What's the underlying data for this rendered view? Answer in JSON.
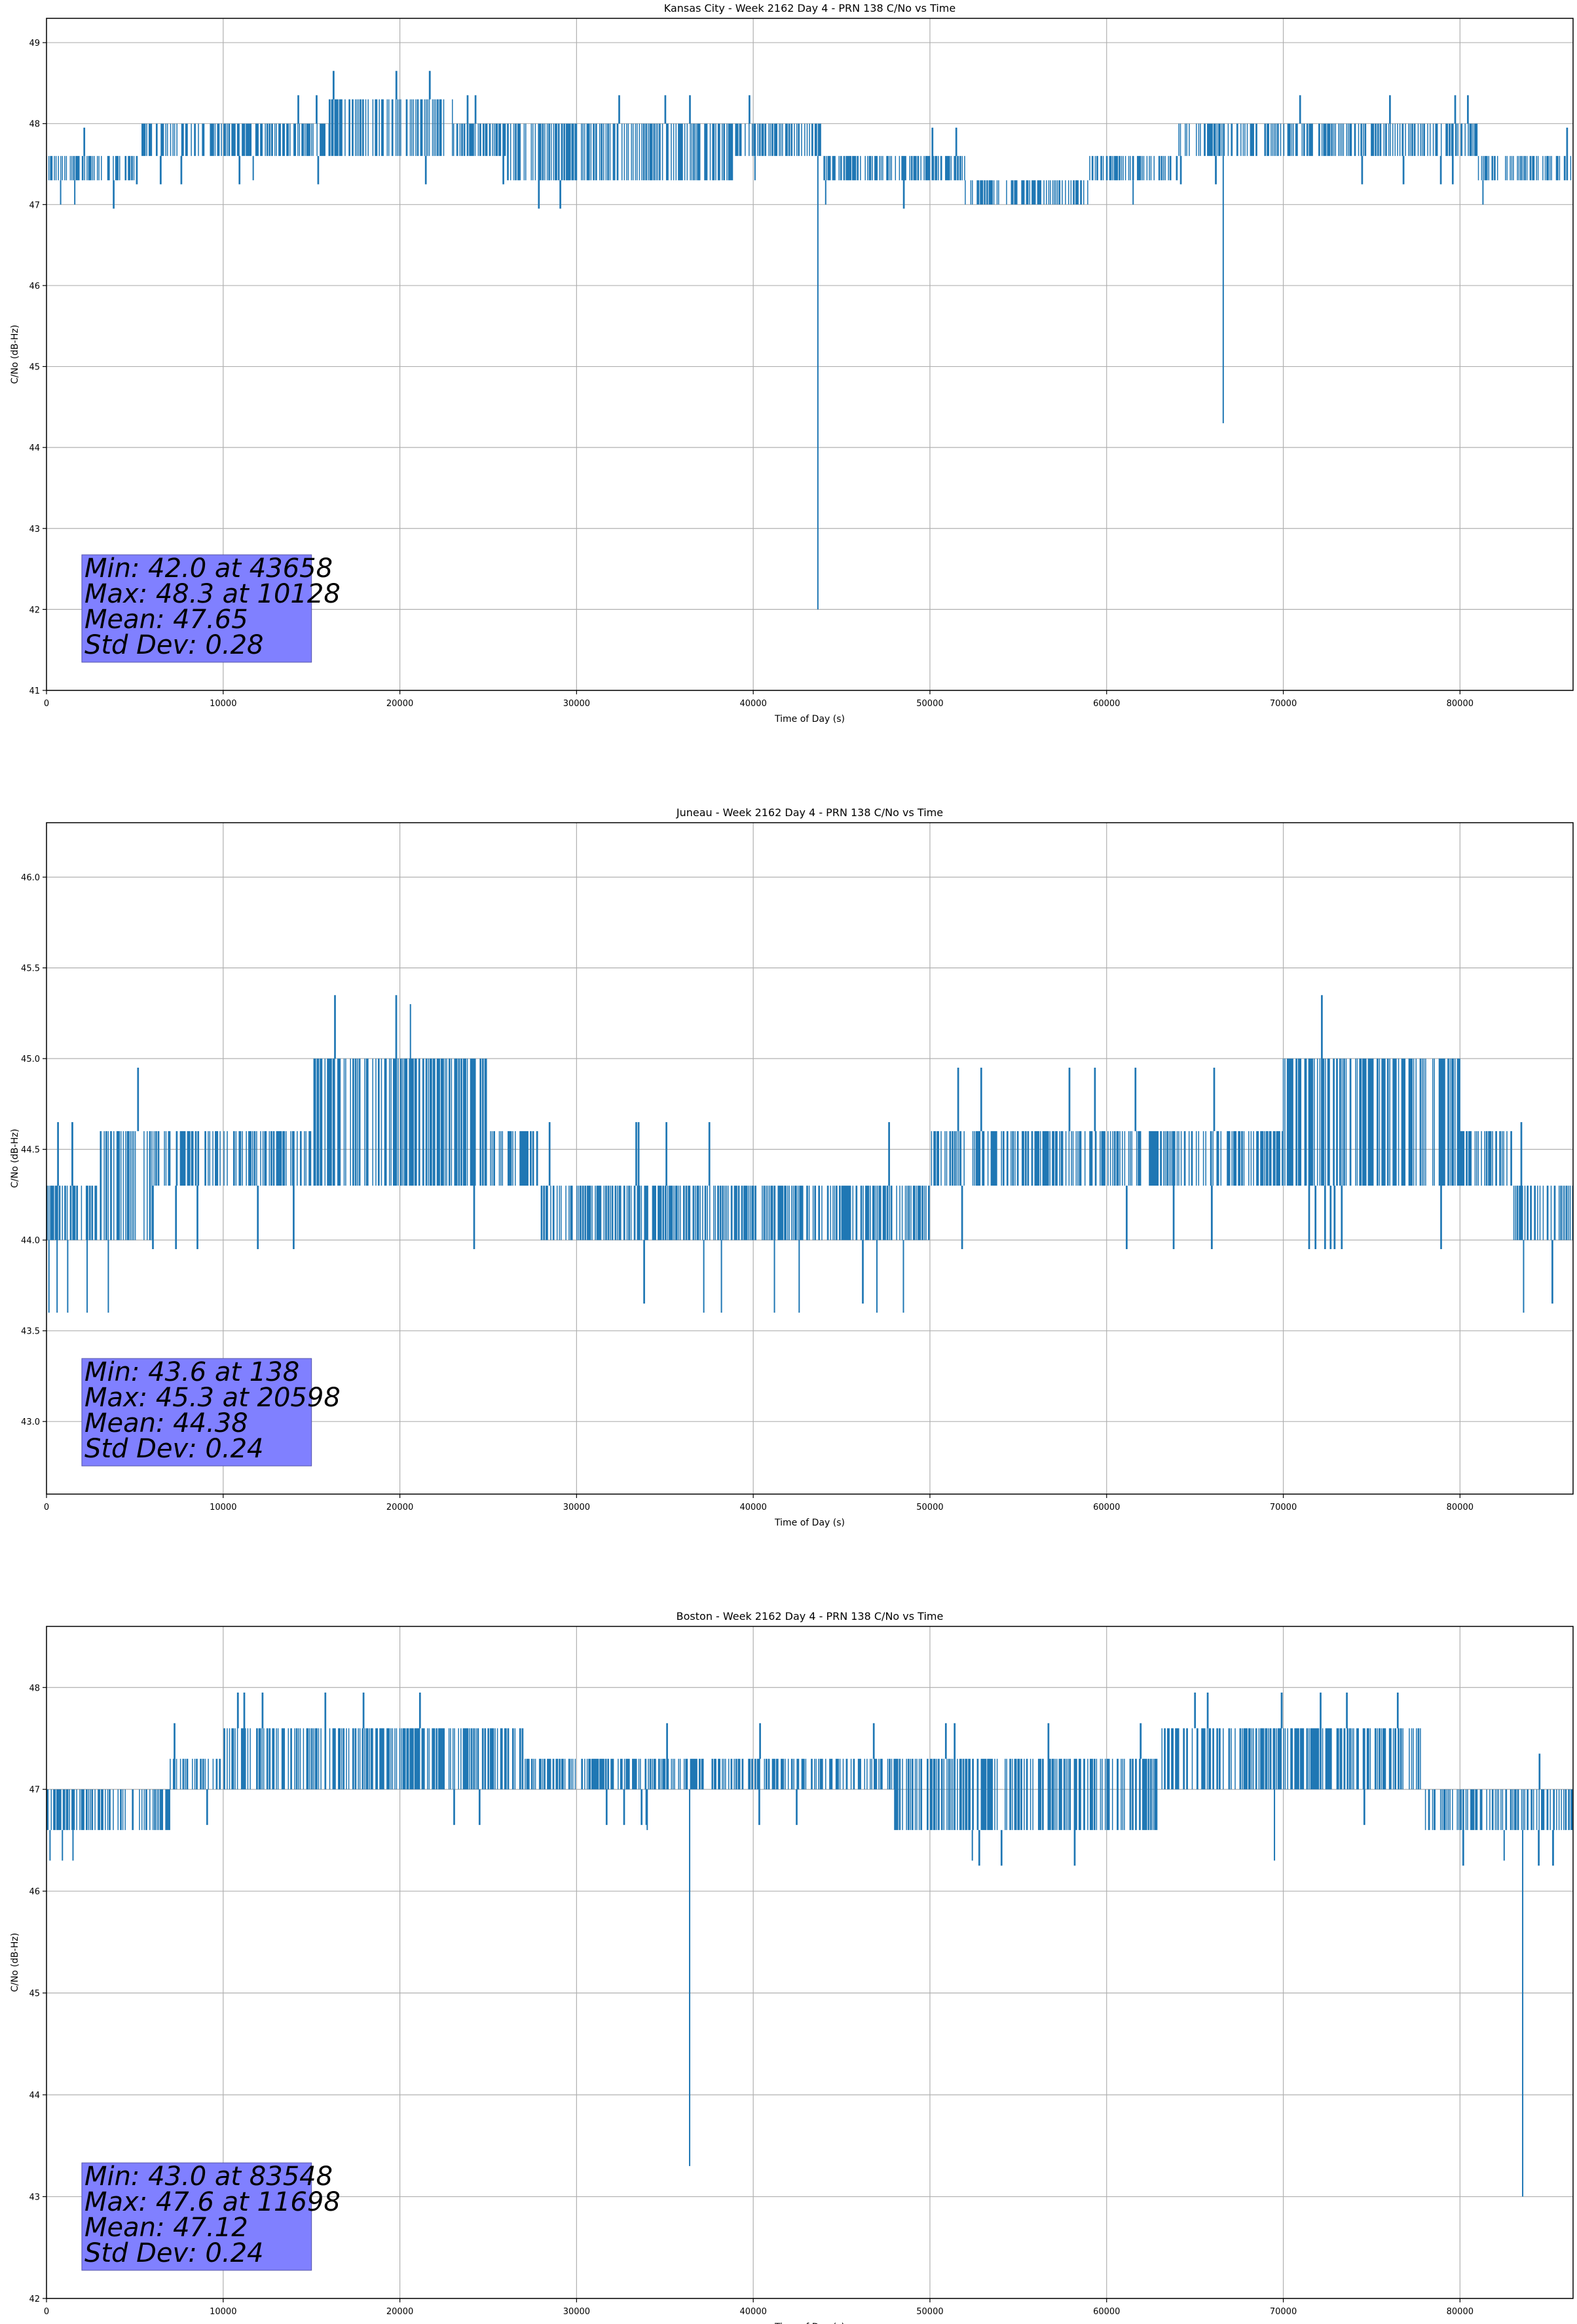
{
  "chart_data": [
    {
      "type": "line",
      "title": "Kansas City - Week 2162 Day 4 - PRN 138 C/No vs Time",
      "xlabel": "Time of Day (s)",
      "ylabel": "C/No (dB-Hz)",
      "xlim": [
        0,
        86400
      ],
      "ylim": [
        41,
        49.3
      ],
      "xticks": [
        0,
        10000,
        20000,
        30000,
        40000,
        50000,
        60000,
        70000,
        80000
      ],
      "yticks": [
        41,
        42,
        43,
        44,
        45,
        46,
        47,
        48,
        49
      ],
      "grid": true,
      "series": [
        {
          "color": "#1f77b4",
          "quantization": 0.35,
          "segments": [
            {
              "x0": 0,
              "x1": 5000,
              "lo": 47.3,
              "hi": 47.6,
              "noise": 0.25
            },
            {
              "x0": 5000,
              "x1": 10000,
              "lo": 47.6,
              "hi": 48.0,
              "noise": 0.3
            },
            {
              "x0": 10000,
              "x1": 16000,
              "lo": 47.6,
              "hi": 48.0,
              "noise": 0.4
            },
            {
              "x0": 16000,
              "x1": 23000,
              "lo": 47.6,
              "hi": 48.3,
              "noise": 0.5
            },
            {
              "x0": 23000,
              "x1": 26000,
              "lo": 47.6,
              "hi": 48.0,
              "noise": 0.3
            },
            {
              "x0": 26000,
              "x1": 39000,
              "lo": 47.3,
              "hi": 48.0,
              "noise": 0.3
            },
            {
              "x0": 39000,
              "x1": 44000,
              "lo": 47.6,
              "hi": 48.0,
              "noise": 0.3
            },
            {
              "x0": 44000,
              "x1": 52000,
              "lo": 47.3,
              "hi": 47.6,
              "noise": 0.25
            },
            {
              "x0": 52000,
              "x1": 59000,
              "lo": 47.0,
              "hi": 47.3,
              "noise": 0.3
            },
            {
              "x0": 59000,
              "x1": 64000,
              "lo": 47.3,
              "hi": 47.6,
              "noise": 0.3
            },
            {
              "x0": 64000,
              "x1": 73000,
              "lo": 47.6,
              "hi": 48.0,
              "noise": 0.4
            },
            {
              "x0": 73000,
              "x1": 81000,
              "lo": 47.6,
              "hi": 48.0,
              "noise": 0.3
            },
            {
              "x0": 81000,
              "x1": 86400,
              "lo": 47.3,
              "hi": 47.6,
              "noise": 0.3
            }
          ],
          "outliers": [
            [
              800,
              47.0
            ],
            [
              1600,
              47.0
            ],
            [
              11700,
              47.3
            ],
            [
              40100,
              47.3
            ],
            [
              43658,
              42.0
            ],
            [
              44100,
              47.0
            ],
            [
              61500,
              47.0
            ],
            [
              66600,
              44.3
            ],
            [
              81300,
              47.0
            ]
          ]
        }
      ],
      "stats": {
        "min": "Min: 42.0 at 43658",
        "max": "Max: 48.3 at 10128",
        "mean": "Mean: 47.65",
        "std": "Std Dev: 0.28"
      }
    },
    {
      "type": "line",
      "title": "Juneau - Week 2162 Day 4 - PRN 138 C/No vs Time",
      "xlabel": "Time of Day (s)",
      "ylabel": "C/No (dB-Hz)",
      "xlim": [
        0,
        86400
      ],
      "ylim": [
        42.6,
        46.3
      ],
      "xticks": [
        0,
        10000,
        20000,
        30000,
        40000,
        50000,
        60000,
        70000,
        80000
      ],
      "yticks": [
        43.0,
        43.5,
        44.0,
        44.5,
        45.0,
        45.5,
        46.0
      ],
      "grid": true,
      "series": [
        {
          "color": "#1f77b4",
          "quantization": 0.35,
          "segments": [
            {
              "x0": 0,
              "x1": 3000,
              "lo": 44.0,
              "hi": 44.3,
              "noise": 0.3
            },
            {
              "x0": 3000,
              "x1": 6000,
              "lo": 44.0,
              "hi": 44.6,
              "noise": 0.3
            },
            {
              "x0": 6000,
              "x1": 15000,
              "lo": 44.3,
              "hi": 44.6,
              "noise": 0.45
            },
            {
              "x0": 15000,
              "x1": 25000,
              "lo": 44.3,
              "hi": 45.0,
              "noise": 0.45
            },
            {
              "x0": 25000,
              "x1": 28000,
              "lo": 44.3,
              "hi": 44.6,
              "noise": 0.3
            },
            {
              "x0": 28000,
              "x1": 50000,
              "lo": 44.0,
              "hi": 44.3,
              "noise": 0.3
            },
            {
              "x0": 50000,
              "x1": 70000,
              "lo": 44.3,
              "hi": 44.6,
              "noise": 0.3
            },
            {
              "x0": 70000,
              "x1": 80000,
              "lo": 44.3,
              "hi": 45.0,
              "noise": 0.4
            },
            {
              "x0": 80000,
              "x1": 83000,
              "lo": 44.3,
              "hi": 44.6,
              "noise": 0.3
            },
            {
              "x0": 83000,
              "x1": 86400,
              "lo": 44.0,
              "hi": 44.3,
              "noise": 0.35
            }
          ],
          "outliers": [
            [
              138,
              43.6
            ],
            [
              600,
              43.6
            ],
            [
              1200,
              43.6
            ],
            [
              2300,
              43.6
            ],
            [
              3500,
              43.6
            ],
            [
              20598,
              45.3
            ],
            [
              37200,
              43.6
            ],
            [
              38200,
              43.6
            ],
            [
              41200,
              43.6
            ],
            [
              42600,
              43.6
            ],
            [
              47000,
              43.6
            ],
            [
              48500,
              43.6
            ],
            [
              83600,
              43.6
            ]
          ]
        }
      ],
      "stats": {
        "min": "Min: 43.6 at 138",
        "max": "Max: 45.3 at 20598",
        "mean": "Mean: 44.38",
        "std": "Std Dev: 0.24"
      }
    },
    {
      "type": "line",
      "title": "Boston - Week 2162 Day 4 - PRN 138 C/No vs Time",
      "xlabel": "Time of Day (s)",
      "ylabel": "C/No (dB-Hz)",
      "xlim": [
        0,
        86400
      ],
      "ylim": [
        42,
        48.6
      ],
      "xticks": [
        0,
        10000,
        20000,
        30000,
        40000,
        50000,
        60000,
        70000,
        80000
      ],
      "yticks": [
        42,
        43,
        44,
        45,
        46,
        47,
        48
      ],
      "grid": true,
      "series": [
        {
          "color": "#1f77b4",
          "quantization": 0.35,
          "segments": [
            {
              "x0": 0,
              "x1": 7000,
              "lo": 46.6,
              "hi": 47.0,
              "noise": 0.3
            },
            {
              "x0": 7000,
              "x1": 10000,
              "lo": 47.0,
              "hi": 47.3,
              "noise": 0.3
            },
            {
              "x0": 10000,
              "x1": 27000,
              "lo": 47.0,
              "hi": 47.6,
              "noise": 0.35
            },
            {
              "x0": 27000,
              "x1": 48000,
              "lo": 47.0,
              "hi": 47.3,
              "noise": 0.3
            },
            {
              "x0": 48000,
              "x1": 63000,
              "lo": 46.6,
              "hi": 47.3,
              "noise": 0.35
            },
            {
              "x0": 63000,
              "x1": 78000,
              "lo": 47.0,
              "hi": 47.6,
              "noise": 0.35
            },
            {
              "x0": 78000,
              "x1": 86400,
              "lo": 46.6,
              "hi": 47.0,
              "noise": 0.3
            }
          ],
          "outliers": [
            [
              200,
              46.3
            ],
            [
              900,
              46.3
            ],
            [
              1500,
              46.3
            ],
            [
              34000,
              46.6
            ],
            [
              36400,
              43.3
            ],
            [
              52400,
              46.3
            ],
            [
              69500,
              46.3
            ],
            [
              82500,
              46.3
            ],
            [
              83548,
              43.0
            ]
          ]
        }
      ],
      "stats": {
        "min": "Min: 43.0 at 83548",
        "max": "Max: 47.6 at 11698",
        "mean": "Mean: 47.12",
        "std": "Std Dev: 0.24"
      }
    }
  ]
}
